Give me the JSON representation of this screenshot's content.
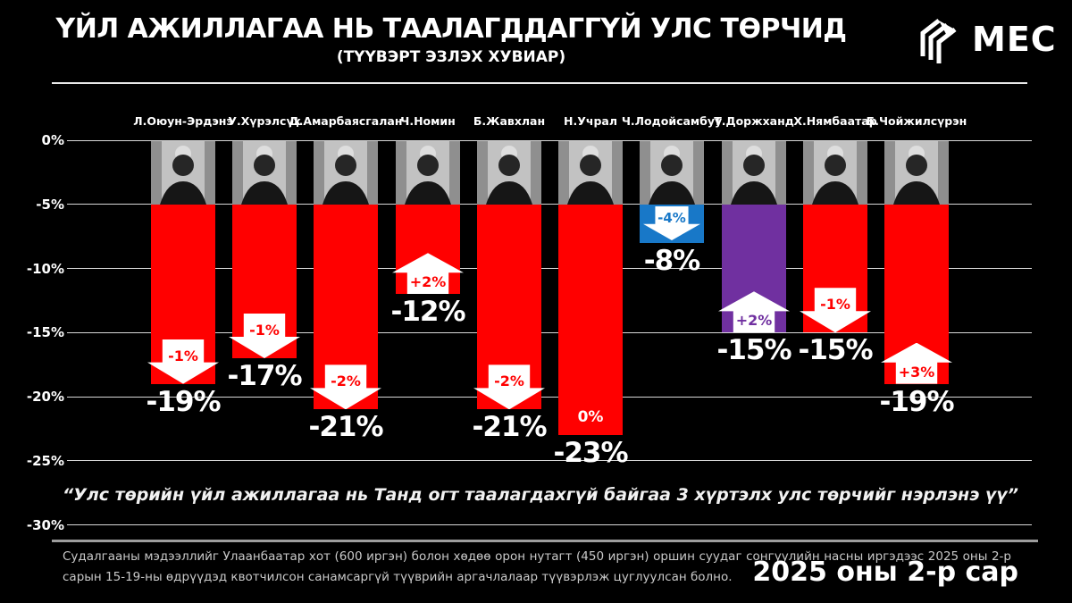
{
  "header": {
    "title": "ҮЙЛ АЖИЛЛАГАА НЬ ТААЛАГДДАГГҮЙ УЛС ТӨРЧИД",
    "subtitle": "(ТҮҮВЭРТ ЭЗЛЭХ ХУВИАР)",
    "logo_text": "MEC"
  },
  "chart_data": {
    "type": "bar",
    "title": "ҮЙЛ АЖИЛЛАГАА НЬ ТААЛАГДДАГГҮЙ УЛС ТӨРЧИД (ТҮҮВЭРТ ЭЗЛЭХ ХУВИАР)",
    "categories": [
      "Л.Оюун-Эрдэнэ",
      "У.Хүрэлсүх",
      "Д.Амарбаясгалан",
      "Ч.Номин",
      "Б.Жавхлан",
      "Н.Учрал",
      "Ч.Лодойсамбуу",
      "Т.Доржханд",
      "Х.Нямбаатар",
      "Б.Чойжилсүрэн"
    ],
    "series": [
      {
        "name": "disapproval_pct",
        "values": [
          -19,
          -17,
          -21,
          -12,
          -21,
          -23,
          -8,
          -15,
          -15,
          -19
        ]
      },
      {
        "name": "monthly_change_pct",
        "values": [
          -1,
          -1,
          -2,
          2,
          -2,
          0,
          -4,
          2,
          -1,
          3
        ]
      }
    ],
    "xlabel": "",
    "ylabel": "",
    "ylim": [
      -30,
      0
    ],
    "yticks": [
      "0%",
      "-5%",
      "-10%",
      "-15%",
      "-20%",
      "-25%",
      "-30%"
    ],
    "grid": true,
    "legend": false
  },
  "bars": [
    {
      "name": "Л.Оюун-Эрдэнэ",
      "value": -19,
      "value_label": "-19%",
      "change_label": "-1%",
      "direction": "down",
      "color": "#FF0000"
    },
    {
      "name": "У.Хүрэлсүх",
      "value": -17,
      "value_label": "-17%",
      "change_label": "-1%",
      "direction": "down",
      "color": "#FF0000"
    },
    {
      "name": "Д.Амарбаясгалан",
      "value": -21,
      "value_label": "-21%",
      "change_label": "-2%",
      "direction": "down",
      "color": "#FF0000"
    },
    {
      "name": "Ч.Номин",
      "value": -12,
      "value_label": "-12%",
      "change_label": "+2%",
      "direction": "up",
      "color": "#FF0000"
    },
    {
      "name": "Б.Жавхлан",
      "value": -21,
      "value_label": "-21%",
      "change_label": "-2%",
      "direction": "down",
      "color": "#FF0000"
    },
    {
      "name": "Н.Учрал",
      "value": -23,
      "value_label": "-23%",
      "change_label": "0%",
      "direction": "none",
      "color": "#FF0000"
    },
    {
      "name": "Ч.Лодойсамбуу",
      "value": -8,
      "value_label": "-8%",
      "change_label": "-4%",
      "direction": "down",
      "color": "#1878C8"
    },
    {
      "name": "Т.Доржханд",
      "value": -15,
      "value_label": "-15%",
      "change_label": "+2%",
      "direction": "up",
      "color": "#7030A0"
    },
    {
      "name": "Х.Нямбаатар",
      "value": -15,
      "value_label": "-15%",
      "change_label": "-1%",
      "direction": "down",
      "color": "#FF0000"
    },
    {
      "name": "Б.Чойжилсүрэн",
      "value": -19,
      "value_label": "-19%",
      "change_label": "+3%",
      "direction": "up",
      "color": "#FF0000"
    }
  ],
  "question": "“Улс төрийн үйл ажиллагаа нь Танд огт таалагдахгүй байгаа 3 хүртэлх улс төрчийг нэрлэнэ үү”",
  "footer": {
    "methodology": "Судалгааны мэдээллийг Улаанбаатар хот (600 иргэн) болон хөдөө орон нутагт (450 иргэн) оршин суудаг сонгуулийн насны иргэдээс 2025 оны 2-р сарын 15-19-ны өдрүүдэд квотчилсон санамсаргүй түүврийн аргачлалаар түүвэрлэж цуглуулсан болно.",
    "date_label": "2025 оны 2-р сар"
  },
  "colors": {
    "background": "#000000",
    "bar_red": "#FF0000",
    "bar_blue": "#1878C8",
    "bar_purple": "#7030A0",
    "grid": "#D8D8D8"
  }
}
